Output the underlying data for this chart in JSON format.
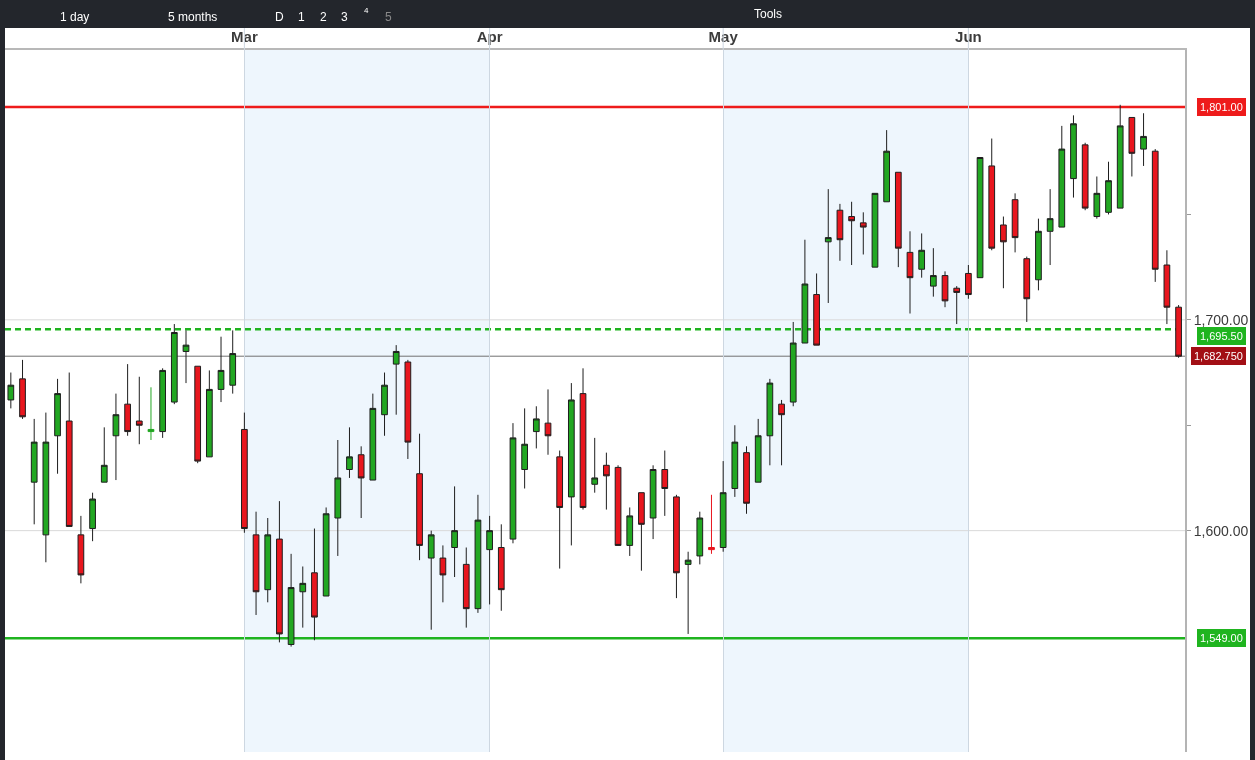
{
  "chart_data": {
    "type": "candlestick",
    "categories": [
      null,
      null,
      null,
      null,
      null,
      null,
      null,
      null,
      null,
      null,
      null,
      null,
      null,
      null,
      null,
      null,
      null,
      null,
      null,
      null,
      "Mar",
      null,
      null,
      null,
      null,
      null,
      null,
      null,
      null,
      null,
      null,
      null,
      null,
      null,
      null,
      null,
      null,
      null,
      null,
      null,
      null,
      "Apr",
      null,
      null,
      null,
      null,
      null,
      null,
      null,
      null,
      null,
      null,
      null,
      null,
      null,
      null,
      null,
      null,
      null,
      null,
      null,
      "May",
      null,
      null,
      null,
      null,
      null,
      null,
      null,
      null,
      null,
      null,
      null,
      null,
      null,
      null,
      null,
      null,
      null,
      null,
      null,
      null,
      "Jun",
      null,
      null,
      null,
      null,
      null,
      null,
      null,
      null,
      null,
      null,
      null,
      null,
      null,
      null,
      null,
      null,
      null,
      null
    ],
    "ohlc": [
      [
        1662,
        1675,
        1658,
        1669
      ],
      [
        1672,
        1681,
        1653,
        1654
      ],
      [
        1623,
        1653,
        1603,
        1642
      ],
      [
        1598,
        1656,
        1585,
        1642
      ],
      [
        1645,
        1672,
        1627,
        1665
      ],
      [
        1652,
        1675,
        1602,
        1602
      ],
      [
        1598,
        1607,
        1575,
        1579
      ],
      [
        1601,
        1618,
        1595,
        1615
      ],
      [
        1623,
        1649,
        1623,
        1631
      ],
      [
        1645,
        1665,
        1624,
        1655
      ],
      [
        1660,
        1679,
        1645,
        1647
      ],
      [
        1652,
        1673,
        1641,
        1650
      ],
      [
        1647,
        1668,
        1643,
        1648
      ],
      [
        1647,
        1677,
        1644,
        1676
      ],
      [
        1661,
        1698,
        1660,
        1694
      ],
      [
        1685,
        1695,
        1670,
        1688
      ],
      [
        1678,
        1678,
        1632,
        1633
      ],
      [
        1635,
        1676,
        1635,
        1667
      ],
      [
        1667,
        1692,
        1661,
        1676
      ],
      [
        1669,
        1695,
        1665,
        1684
      ],
      [
        1648,
        1656,
        1599,
        1601
      ],
      [
        1598,
        1609,
        1560,
        1571
      ],
      [
        1572,
        1606,
        1566,
        1598
      ],
      [
        1596,
        1614,
        1547,
        1551
      ],
      [
        1546,
        1589,
        1545,
        1573
      ],
      [
        1571,
        1583,
        1554,
        1575
      ],
      [
        1580,
        1601,
        1548,
        1559
      ],
      [
        1569,
        1611,
        1569,
        1608
      ],
      [
        1606,
        1643,
        1588,
        1625
      ],
      [
        1629,
        1649,
        1625,
        1635
      ],
      [
        1636,
        1640,
        1606,
        1625
      ],
      [
        1624,
        1665,
        1624,
        1658
      ],
      [
        1655,
        1675,
        1645,
        1669
      ],
      [
        1679,
        1688,
        1655,
        1685
      ],
      [
        1680,
        1681,
        1634,
        1642
      ],
      [
        1627,
        1646,
        1586,
        1593
      ],
      [
        1587,
        1600,
        1553,
        1598
      ],
      [
        1587,
        1593,
        1566,
        1579
      ],
      [
        1592,
        1621,
        1578,
        1600
      ],
      [
        1584,
        1592,
        1554,
        1563
      ],
      [
        1563,
        1617,
        1561,
        1605
      ],
      [
        1591,
        1607,
        1565,
        1600
      ],
      [
        1592,
        1603,
        1562,
        1572
      ],
      [
        1596,
        1651,
        1594,
        1644
      ],
      [
        1629,
        1658,
        1620,
        1641
      ],
      [
        1647,
        1659,
        1639,
        1653
      ],
      [
        1651,
        1667,
        1636,
        1645
      ],
      [
        1635,
        1638,
        1582,
        1611
      ],
      [
        1616,
        1670,
        1593,
        1662
      ],
      [
        1665,
        1677,
        1610,
        1611
      ],
      [
        1622,
        1644,
        1618,
        1625
      ],
      [
        1631,
        1637,
        1610,
        1626
      ],
      [
        1630,
        1631,
        1593,
        1593
      ],
      [
        1593,
        1611,
        1588,
        1607
      ],
      [
        1618,
        1618,
        1581,
        1603
      ],
      [
        1606,
        1631,
        1596,
        1629
      ],
      [
        1629,
        1638,
        1607,
        1620
      ],
      [
        1616,
        1617,
        1568,
        1580
      ],
      [
        1584,
        1590,
        1551,
        1586
      ],
      [
        1588,
        1609,
        1584,
        1606
      ],
      [
        1592,
        1617,
        1589,
        1591
      ],
      [
        1592,
        1633,
        1590,
        1618
      ],
      [
        1620,
        1650,
        1616,
        1642
      ],
      [
        1637,
        1640,
        1608,
        1613
      ],
      [
        1623,
        1653,
        1623,
        1645
      ],
      [
        1645,
        1672,
        1631,
        1670
      ],
      [
        1660,
        1662,
        1631,
        1655
      ],
      [
        1661,
        1699,
        1659,
        1689
      ],
      [
        1689,
        1738,
        1689,
        1717
      ],
      [
        1712,
        1722,
        1688,
        1688
      ],
      [
        1737,
        1762,
        1708,
        1739
      ],
      [
        1752,
        1755,
        1728,
        1738
      ],
      [
        1749,
        1756,
        1726,
        1747
      ],
      [
        1746,
        1751,
        1731,
        1744
      ],
      [
        1725,
        1760,
        1725,
        1760
      ],
      [
        1756,
        1790,
        1756,
        1780
      ],
      [
        1770,
        1770,
        1725,
        1734
      ],
      [
        1732,
        1742,
        1703,
        1720
      ],
      [
        1724,
        1741,
        1720,
        1733
      ],
      [
        1716,
        1734,
        1711,
        1721
      ],
      [
        1721,
        1723,
        1706,
        1709
      ],
      [
        1715,
        1716,
        1698,
        1713
      ],
      [
        1722,
        1726,
        1710,
        1712
      ],
      [
        1720,
        1777,
        1720,
        1777
      ],
      [
        1773,
        1786,
        1733,
        1734
      ],
      [
        1745,
        1749,
        1715,
        1737
      ],
      [
        1757,
        1760,
        1732,
        1739
      ],
      [
        1729,
        1730,
        1699,
        1710
      ],
      [
        1719,
        1748,
        1714,
        1742
      ],
      [
        1742,
        1762,
        1726,
        1748
      ],
      [
        1744,
        1792,
        1744,
        1781
      ],
      [
        1767,
        1797,
        1758,
        1793
      ],
      [
        1783,
        1784,
        1752,
        1753
      ],
      [
        1749,
        1768,
        1748,
        1760
      ],
      [
        1751,
        1775,
        1750,
        1766
      ],
      [
        1753,
        1802,
        1753,
        1792
      ],
      [
        1796,
        1796,
        1768,
        1779
      ],
      [
        1781,
        1798,
        1773,
        1787
      ],
      [
        1780,
        1781,
        1718,
        1724
      ],
      [
        1726,
        1733,
        1698,
        1706
      ],
      [
        1706,
        1707,
        1682,
        1682.75
      ]
    ],
    "colors": [
      "#22a722",
      "#e8161e",
      "#22a722",
      "#22a722",
      "#22a722",
      "#e8161e",
      "#e8161e",
      "#22a722",
      "#22a722",
      "#22a722",
      "#e8161e",
      "#e8161e",
      "#22a722",
      "#22a722",
      "#22a722",
      "#22a722",
      "#e8161e",
      "#22a722",
      "#22a722",
      "#22a722",
      "#e8161e",
      "#e8161e",
      "#22a722",
      "#e8161e",
      "#22a722",
      "#22a722",
      "#e8161e",
      "#22a722",
      "#22a722",
      "#22a722",
      "#e8161e",
      "#22a722",
      "#22a722",
      "#22a722",
      "#e8161e",
      "#e8161e",
      "#22a722",
      "#e8161e",
      "#22a722",
      "#e8161e",
      "#22a722",
      "#22a722",
      "#e8161e",
      "#22a722",
      "#22a722",
      "#22a722",
      "#e8161e",
      "#e8161e",
      "#22a722",
      "#e8161e",
      "#22a722",
      "#e8161e",
      "#e8161e",
      "#22a722",
      "#e8161e",
      "#22a722",
      "#e8161e",
      "#e8161e",
      "#22a722",
      "#22a722",
      "#e8161e",
      "#22a722",
      "#22a722",
      "#e8161e",
      "#22a722",
      "#22a722",
      "#e8161e",
      "#22a722",
      "#22a722",
      "#e8161e",
      "#22a722",
      "#e8161e",
      "#e8161e",
      "#e8161e",
      "#22a722",
      "#22a722",
      "#e8161e",
      "#e8161e",
      "#22a722",
      "#22a722",
      "#e8161e",
      "#e8161e",
      "#e8161e",
      "#22a722",
      "#e8161e",
      "#e8161e",
      "#e8161e",
      "#e8161e",
      "#22a722",
      "#22a722",
      "#22a722",
      "#22a722",
      "#e8161e",
      "#22a722",
      "#22a722",
      "#22a722",
      "#e8161e",
      "#22a722",
      "#e8161e",
      "#e8161e",
      "#e8161e"
    ],
    "ylim": [
      1495,
      1828
    ],
    "yticks": [
      {
        "value": 1600,
        "label": "1,600.00"
      },
      {
        "value": 1650,
        "label": null
      },
      {
        "value": 1700,
        "label": "1,700.00"
      },
      {
        "value": 1750,
        "label": null
      }
    ],
    "grid": true,
    "bands": [
      {
        "axis": "x",
        "from": "Mar",
        "to": "Apr",
        "color": "#eef6fd"
      },
      {
        "axis": "x",
        "from": "May",
        "to": "Jun",
        "color": "#eef6fd"
      }
    ],
    "ref_lines": [
      {
        "axis": "y",
        "value": 1801,
        "label": "1,801.00",
        "color": "#ee1b1b"
      },
      {
        "axis": "y",
        "value": 1695.5,
        "label": "1,695.50",
        "color": "#1fb41f",
        "line_style": "dashed"
      },
      {
        "axis": "y",
        "value": 1682.75,
        "label": "1,682.750",
        "color": "#707070"
      },
      {
        "axis": "y",
        "value": 1549,
        "label": "1,549.00",
        "color": "#1fb41f"
      }
    ],
    "annotations": [
      "1 day",
      "5 months",
      "D",
      "1",
      "2",
      "3",
      "4",
      "5",
      "Tools"
    ]
  }
}
